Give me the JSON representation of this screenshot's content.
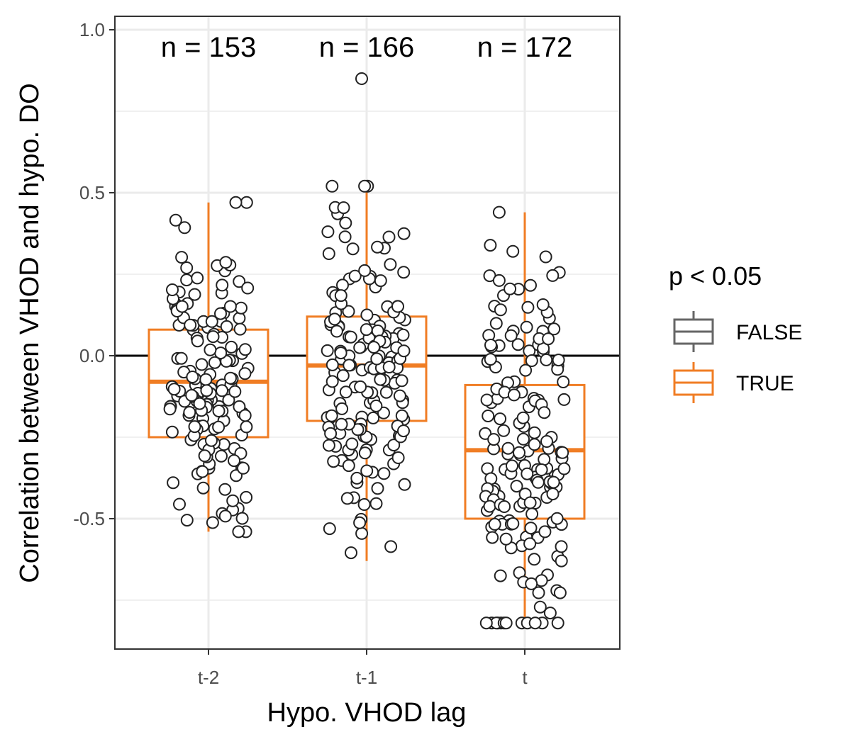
{
  "chart_data": {
    "type": "boxplot",
    "xlabel": "Hypo. VHOD lag",
    "ylabel": "Correlation between VHOD and hypo. DO",
    "ylim": [
      -0.9,
      1.04
    ],
    "yticks": [
      -0.5,
      0.0,
      0.5,
      1.0
    ],
    "ytick_labels": [
      "-0.5",
      "0.0",
      "0.5",
      "1.0"
    ],
    "categories": [
      "t-2",
      "t-1",
      "t"
    ],
    "grid": true,
    "reference_line": 0,
    "legend": {
      "title": "p < 0.05",
      "position": "right",
      "entries": [
        {
          "label": "FALSE",
          "color": "#666666"
        },
        {
          "label": "TRUE",
          "color": "#f07d24"
        }
      ]
    },
    "boxes": [
      {
        "category": "t-2",
        "sig": "TRUE",
        "whisker_low": -0.54,
        "q1": -0.25,
        "median": -0.08,
        "q3": 0.08,
        "whisker_high": 0.47
      },
      {
        "category": "t-1",
        "sig": "TRUE",
        "whisker_low": -0.63,
        "q1": -0.2,
        "median": -0.03,
        "q3": 0.12,
        "whisker_high": 0.52
      },
      {
        "category": "t",
        "sig": "TRUE",
        "whisker_low": -0.82,
        "q1": -0.5,
        "median": -0.29,
        "q3": -0.09,
        "whisker_high": 0.44
      }
    ],
    "annotations": [
      "n = 153",
      "n = 166",
      "n = 172"
    ],
    "counts": [
      153,
      166,
      172
    ],
    "colors": {
      "box": "#f07d24",
      "point_fill": "#ffffff",
      "point_stroke": "#222222"
    }
  }
}
